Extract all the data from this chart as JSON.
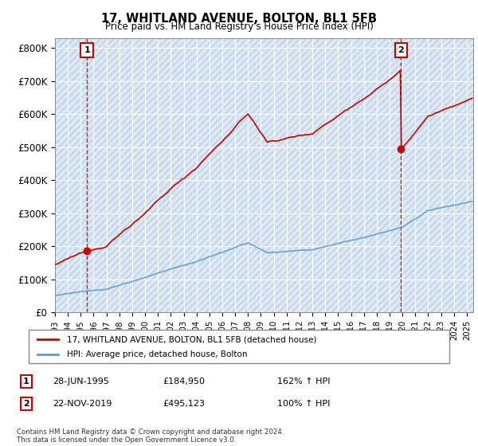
{
  "title": "17, WHITLAND AVENUE, BOLTON, BL1 5FB",
  "subtitle": "Price paid vs. HM Land Registry's House Price Index (HPI)",
  "xlim": [
    1993.0,
    2025.5
  ],
  "ylim": [
    0,
    830000
  ],
  "yticks": [
    0,
    100000,
    200000,
    300000,
    400000,
    500000,
    600000,
    700000,
    800000
  ],
  "ytick_labels": [
    "£0",
    "£100K",
    "£200K",
    "£300K",
    "£400K",
    "£500K",
    "£600K",
    "£700K",
    "£800K"
  ],
  "hpi_color": "#6699cc",
  "property_color": "#cc0000",
  "marker1_year": 1995.49,
  "marker1_value": 184950,
  "marker2_year": 2019.89,
  "marker2_value": 495123,
  "legend_property": "17, WHITLAND AVENUE, BOLTON, BL1 5FB (detached house)",
  "legend_hpi": "HPI: Average price, detached house, Bolton",
  "annotation1_date": "28-JUN-1995",
  "annotation1_price": "£184,950",
  "annotation1_hpi": "162% ↑ HPI",
  "annotation2_date": "22-NOV-2019",
  "annotation2_price": "£495,123",
  "annotation2_hpi": "100% ↑ HPI",
  "footer": "Contains HM Land Registry data © Crown copyright and database right 2024.\nThis data is licensed under the Open Government Licence v3.0.",
  "plot_bg_color": "#dce9f5",
  "hatch_color": "#c8d8e8"
}
